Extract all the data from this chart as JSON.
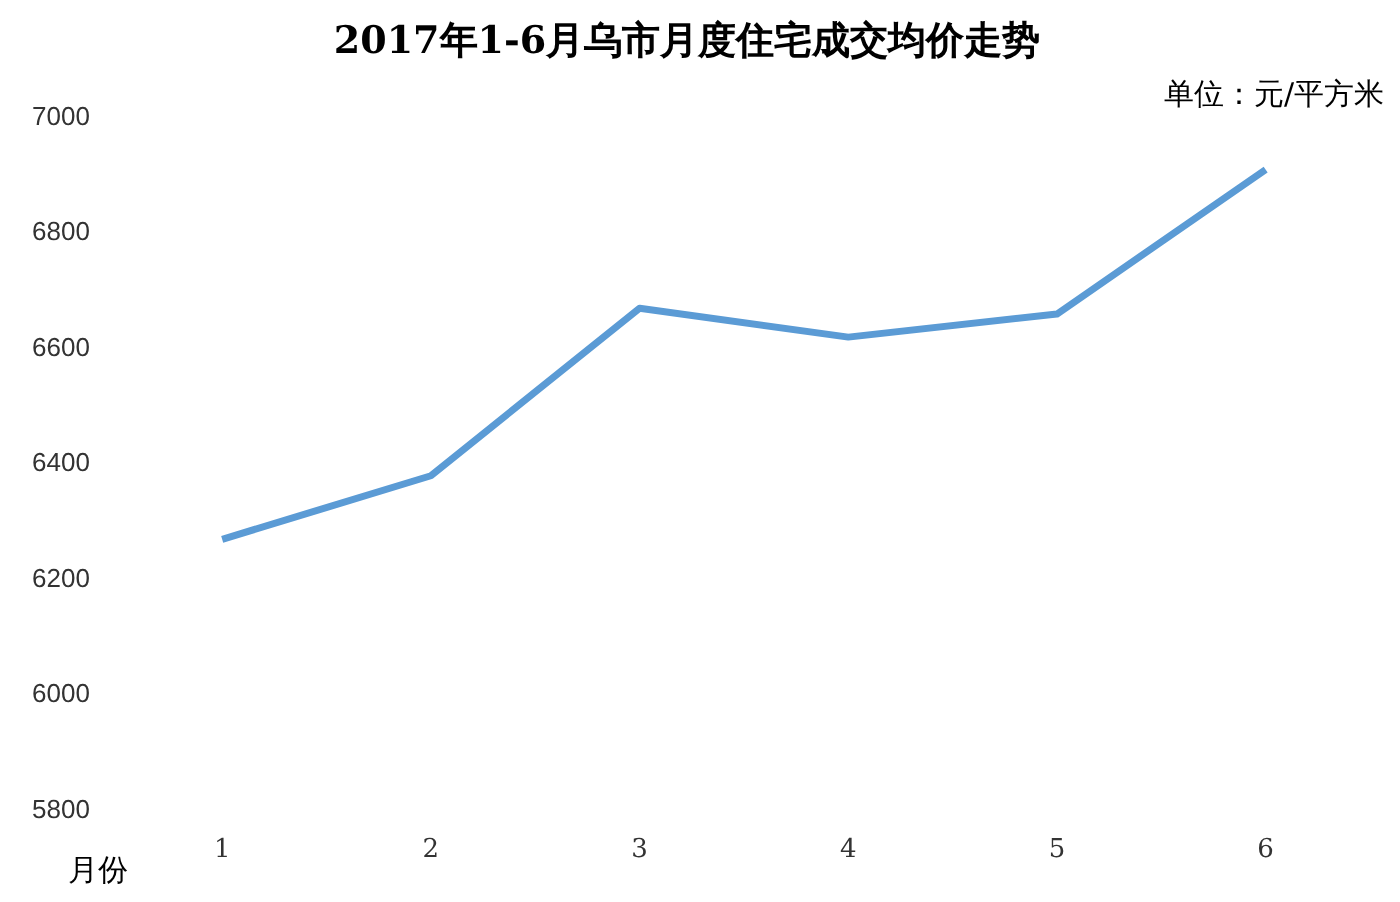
{
  "chart_data": {
    "type": "line",
    "title": "2017年1-6月乌市月度住宅成交均价走势",
    "xlabel": "月份",
    "annotations": [
      "单位：元/平方米"
    ],
    "categories": [
      "1",
      "2",
      "3",
      "4",
      "5",
      "6"
    ],
    "series": [
      {
        "color": "#5b9bd5",
        "values": [
          6270,
          6380,
          6670,
          6620,
          6660,
          6910
        ]
      }
    ],
    "ylim": [
      5800,
      7000
    ],
    "yticks": [
      5800,
      6000,
      6200,
      6400,
      6600,
      6800,
      7000
    ],
    "grid": false,
    "legend": false,
    "marker": "none",
    "line_style": "solid"
  }
}
